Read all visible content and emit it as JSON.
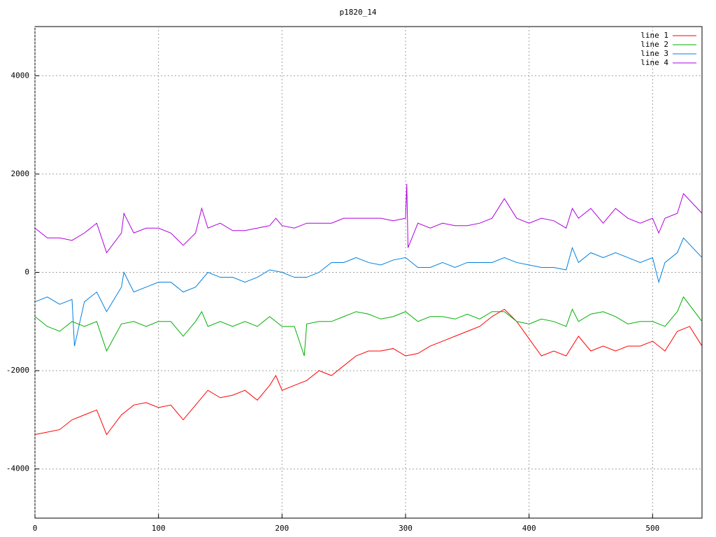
{
  "chart_data": {
    "type": "line",
    "title": "p1820_14",
    "xlim": [
      0,
      540
    ],
    "ylim": [
      -5000,
      5000
    ],
    "xticks": [
      0,
      100,
      200,
      300,
      400,
      500
    ],
    "yticks": [
      -4000,
      -2000,
      0,
      2000,
      4000
    ],
    "grid": true,
    "legend": "top-right",
    "series": [
      {
        "name": "line 1",
        "color": "#ff0000",
        "x": [
          0,
          10,
          20,
          30,
          40,
          50,
          58,
          70,
          80,
          90,
          100,
          110,
          120,
          130,
          140,
          150,
          160,
          170,
          180,
          190,
          195,
          200,
          210,
          220,
          230,
          240,
          250,
          260,
          270,
          280,
          290,
          300,
          310,
          320,
          330,
          340,
          350,
          360,
          370,
          380,
          390,
          400,
          410,
          420,
          430,
          440,
          450,
          460,
          470,
          480,
          490,
          500,
          510,
          520,
          530,
          540
        ],
        "values": [
          -3300,
          -3250,
          -3200,
          -3000,
          -2900,
          -2800,
          -3300,
          -2900,
          -2700,
          -2650,
          -2750,
          -2700,
          -3000,
          -2700,
          -2400,
          -2550,
          -2500,
          -2400,
          -2600,
          -2300,
          -2100,
          -2400,
          -2300,
          -2200,
          -2000,
          -2100,
          -1900,
          -1700,
          -1600,
          -1600,
          -1550,
          -1700,
          -1650,
          -1500,
          -1400,
          -1300,
          -1200,
          -1100,
          -900,
          -750,
          -1000,
          -1350,
          -1700,
          -1600,
          -1700,
          -1300,
          -1600,
          -1500,
          -1600,
          -1500,
          -1500,
          -1400,
          -1600,
          -1200,
          -1100,
          -1500
        ]
      },
      {
        "name": "line 2",
        "color": "#00b000",
        "x": [
          0,
          10,
          20,
          30,
          40,
          50,
          58,
          70,
          80,
          90,
          100,
          110,
          120,
          130,
          135,
          140,
          150,
          160,
          170,
          180,
          190,
          200,
          210,
          218,
          220,
          230,
          240,
          250,
          260,
          270,
          280,
          290,
          300,
          310,
          320,
          330,
          340,
          350,
          360,
          370,
          380,
          390,
          400,
          410,
          420,
          430,
          435,
          440,
          450,
          460,
          470,
          480,
          490,
          500,
          510,
          520,
          525,
          540
        ],
        "values": [
          -900,
          -1100,
          -1200,
          -1000,
          -1100,
          -1000,
          -1600,
          -1050,
          -1000,
          -1100,
          -1000,
          -1000,
          -1300,
          -1000,
          -800,
          -1100,
          -1000,
          -1100,
          -1000,
          -1100,
          -900,
          -1100,
          -1100,
          -1700,
          -1050,
          -1000,
          -1000,
          -900,
          -800,
          -850,
          -950,
          -900,
          -800,
          -1000,
          -900,
          -900,
          -950,
          -850,
          -950,
          -800,
          -800,
          -1000,
          -1050,
          -950,
          -1000,
          -1100,
          -750,
          -1000,
          -850,
          -800,
          -900,
          -1050,
          -1000,
          -1000,
          -1100,
          -800,
          -500,
          -1000
        ]
      },
      {
        "name": "line 3",
        "color": "#0080e0",
        "x": [
          0,
          10,
          20,
          30,
          32,
          40,
          50,
          58,
          70,
          72,
          80,
          90,
          100,
          110,
          120,
          130,
          140,
          150,
          160,
          170,
          180,
          190,
          200,
          210,
          220,
          230,
          240,
          250,
          260,
          270,
          280,
          290,
          300,
          310,
          320,
          330,
          340,
          350,
          360,
          370,
          380,
          390,
          400,
          410,
          420,
          430,
          435,
          440,
          450,
          460,
          470,
          480,
          490,
          500,
          505,
          510,
          520,
          525,
          540
        ],
        "values": [
          -600,
          -500,
          -650,
          -550,
          -1500,
          -600,
          -400,
          -800,
          -300,
          0,
          -400,
          -300,
          -200,
          -200,
          -400,
          -300,
          0,
          -100,
          -100,
          -200,
          -100,
          50,
          0,
          -100,
          -100,
          0,
          200,
          200,
          300,
          200,
          150,
          250,
          300,
          100,
          100,
          200,
          100,
          200,
          200,
          200,
          300,
          200,
          150,
          100,
          100,
          50,
          500,
          200,
          400,
          300,
          400,
          300,
          200,
          300,
          -200,
          200,
          400,
          700,
          300
        ]
      },
      {
        "name": "line 4",
        "color": "#b000e0",
        "x": [
          0,
          10,
          20,
          30,
          40,
          50,
          58,
          70,
          72,
          80,
          90,
          100,
          110,
          120,
          130,
          135,
          140,
          150,
          160,
          170,
          180,
          190,
          195,
          200,
          210,
          220,
          230,
          240,
          250,
          260,
          270,
          280,
          290,
          300,
          301,
          302,
          310,
          320,
          330,
          340,
          350,
          360,
          370,
          380,
          390,
          400,
          410,
          420,
          430,
          435,
          440,
          450,
          460,
          470,
          480,
          490,
          500,
          505,
          510,
          520,
          525,
          540
        ],
        "values": [
          900,
          700,
          700,
          650,
          800,
          1000,
          400,
          800,
          1200,
          800,
          900,
          900,
          800,
          550,
          800,
          1300,
          900,
          1000,
          850,
          850,
          900,
          950,
          1100,
          950,
          900,
          1000,
          1000,
          1000,
          1100,
          1100,
          1100,
          1100,
          1050,
          1100,
          1800,
          500,
          1000,
          900,
          1000,
          950,
          950,
          1000,
          1100,
          1500,
          1100,
          1000,
          1100,
          1050,
          900,
          1300,
          1100,
          1300,
          1000,
          1300,
          1100,
          1000,
          1100,
          800,
          1100,
          1200,
          1600,
          1200
        ]
      }
    ]
  }
}
